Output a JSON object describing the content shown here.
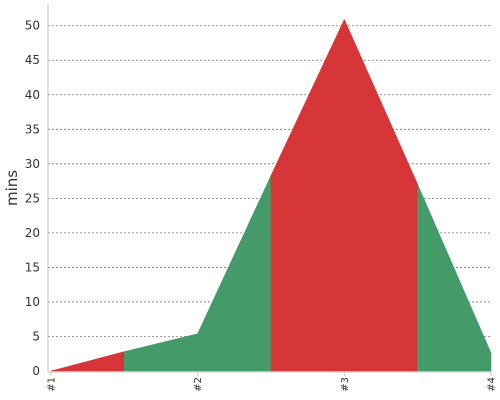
{
  "chart_data": {
    "type": "area",
    "title": "",
    "xlabel": "",
    "ylabel": "mins",
    "categories": [
      "#1",
      "#2",
      "#3",
      "#4"
    ],
    "ylim": [
      0,
      53
    ],
    "yticks": [
      0,
      5,
      10,
      15,
      20,
      25,
      30,
      35,
      40,
      45,
      50
    ],
    "grid": true,
    "legend": "none",
    "x": [
      1,
      1.5,
      2,
      2.5,
      3,
      3.5,
      4
    ],
    "y": [
      0,
      2.8,
      5.4,
      28.3,
      50.9,
      27,
      2.6
    ],
    "band_colors": [
      "#d63638",
      "#449b69",
      "#449b69",
      "#d63638",
      "#d63638",
      "#449b69"
    ]
  }
}
